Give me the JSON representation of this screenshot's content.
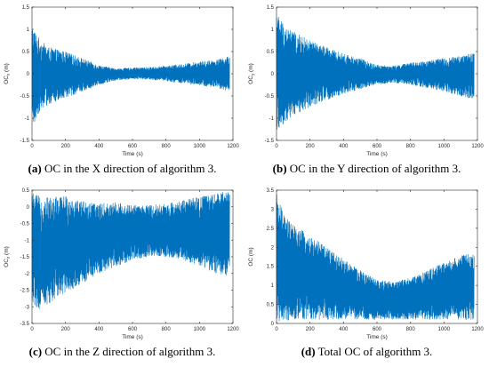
{
  "figure": {
    "panels": [
      {
        "letter": "(a)",
        "caption": "OC in the X direction of algorithm 3."
      },
      {
        "letter": "(b)",
        "caption": "OC in the Y direction of algorithm 3."
      },
      {
        "letter": "(c)",
        "caption": "OC in the Z direction of algorithm 3."
      },
      {
        "letter": "(d)",
        "caption": "Total OC of algorithm 3."
      }
    ]
  },
  "chart_data": [
    {
      "type": "line",
      "xlabel": "Time (s)",
      "ylabel": "OC_x (m)",
      "xlim": [
        0,
        1200
      ],
      "ylim": [
        -1.5,
        1.5
      ],
      "xticks": [
        0,
        200,
        400,
        600,
        800,
        1000,
        1200
      ],
      "yticks": [
        -1.5,
        -1,
        -0.5,
        0,
        0.5,
        1,
        1.5
      ],
      "grid": false,
      "color": "#0072BD",
      "envelope": {
        "x": [
          0,
          50,
          100,
          200,
          300,
          400,
          500,
          600,
          700,
          800,
          900,
          1000,
          1100,
          1180
        ],
        "upper": [
          1.1,
          0.75,
          0.6,
          0.5,
          0.35,
          0.2,
          0.12,
          0.14,
          0.15,
          0.18,
          0.22,
          0.28,
          0.32,
          0.4
        ],
        "lower": [
          -1.25,
          -0.8,
          -0.7,
          -0.55,
          -0.4,
          -0.25,
          -0.15,
          -0.12,
          -0.13,
          -0.17,
          -0.22,
          -0.27,
          -0.32,
          -0.4
        ]
      },
      "samples": 1400
    },
    {
      "type": "line",
      "xlabel": "Time (s)",
      "ylabel": "OC_y (m)",
      "xlim": [
        0,
        1200
      ],
      "ylim": [
        -1.5,
        1.5
      ],
      "xticks": [
        0,
        200,
        400,
        600,
        800,
        1000,
        1200
      ],
      "yticks": [
        -1.5,
        -1,
        -0.5,
        0,
        0.5,
        1,
        1.5
      ],
      "grid": false,
      "color": "#0072BD",
      "envelope": {
        "x": [
          0,
          50,
          100,
          200,
          300,
          400,
          500,
          600,
          700,
          800,
          900,
          1000,
          1100,
          1180
        ],
        "upper": [
          1.4,
          1.1,
          0.95,
          0.75,
          0.6,
          0.45,
          0.35,
          0.2,
          0.18,
          0.25,
          0.3,
          0.35,
          0.4,
          0.5
        ],
        "lower": [
          -1.3,
          -1.1,
          -0.95,
          -0.75,
          -0.6,
          -0.45,
          -0.35,
          -0.25,
          -0.2,
          -0.25,
          -0.32,
          -0.4,
          -0.5,
          -0.6
        ]
      },
      "samples": 1400
    },
    {
      "type": "line",
      "xlabel": "Time (s)",
      "ylabel": "OC_z (m)",
      "xlim": [
        0,
        1200
      ],
      "ylim": [
        -3.5,
        0.5
      ],
      "xticks": [
        0,
        200,
        400,
        600,
        800,
        1000,
        1200
      ],
      "yticks": [
        -3.5,
        -3,
        -2.5,
        -2,
        -1.5,
        -1,
        -0.5,
        0,
        0.5
      ],
      "grid": false,
      "color": "#0072BD",
      "envelope": {
        "x": [
          0,
          50,
          100,
          200,
          300,
          400,
          500,
          600,
          700,
          800,
          900,
          1000,
          1100,
          1180
        ],
        "upper": [
          0.45,
          0.3,
          0.3,
          0.35,
          0.2,
          0.1,
          0.15,
          0.05,
          0.05,
          0.1,
          0.2,
          0.3,
          0.4,
          0.5
        ],
        "lower": [
          -2.9,
          -3.1,
          -2.9,
          -2.6,
          -2.3,
          -2.0,
          -1.8,
          -1.6,
          -1.5,
          -1.5,
          -1.6,
          -1.8,
          -2.0,
          -2.1
        ]
      },
      "samples": 1400
    },
    {
      "type": "line",
      "xlabel": "Time (s)",
      "ylabel": "OC (m)",
      "xlim": [
        0,
        1200
      ],
      "ylim": [
        0,
        3.5
      ],
      "xticks": [
        0,
        200,
        400,
        600,
        800,
        1000,
        1200
      ],
      "yticks": [
        0,
        0.5,
        1,
        1.5,
        2,
        2.5,
        3,
        3.5
      ],
      "grid": false,
      "color": "#0072BD",
      "envelope": {
        "x": [
          0,
          50,
          100,
          200,
          300,
          400,
          500,
          600,
          700,
          800,
          900,
          1000,
          1100,
          1180
        ],
        "upper": [
          3.4,
          2.8,
          2.6,
          2.3,
          2.0,
          1.7,
          1.4,
          1.15,
          1.1,
          1.2,
          1.4,
          1.6,
          1.8,
          1.85
        ],
        "lower": [
          0.05,
          0.05,
          0.1,
          0.1,
          0.1,
          0.1,
          0.1,
          0.1,
          0.1,
          0.1,
          0.1,
          0.1,
          0.1,
          0.1
        ]
      },
      "samples": 1400
    }
  ]
}
